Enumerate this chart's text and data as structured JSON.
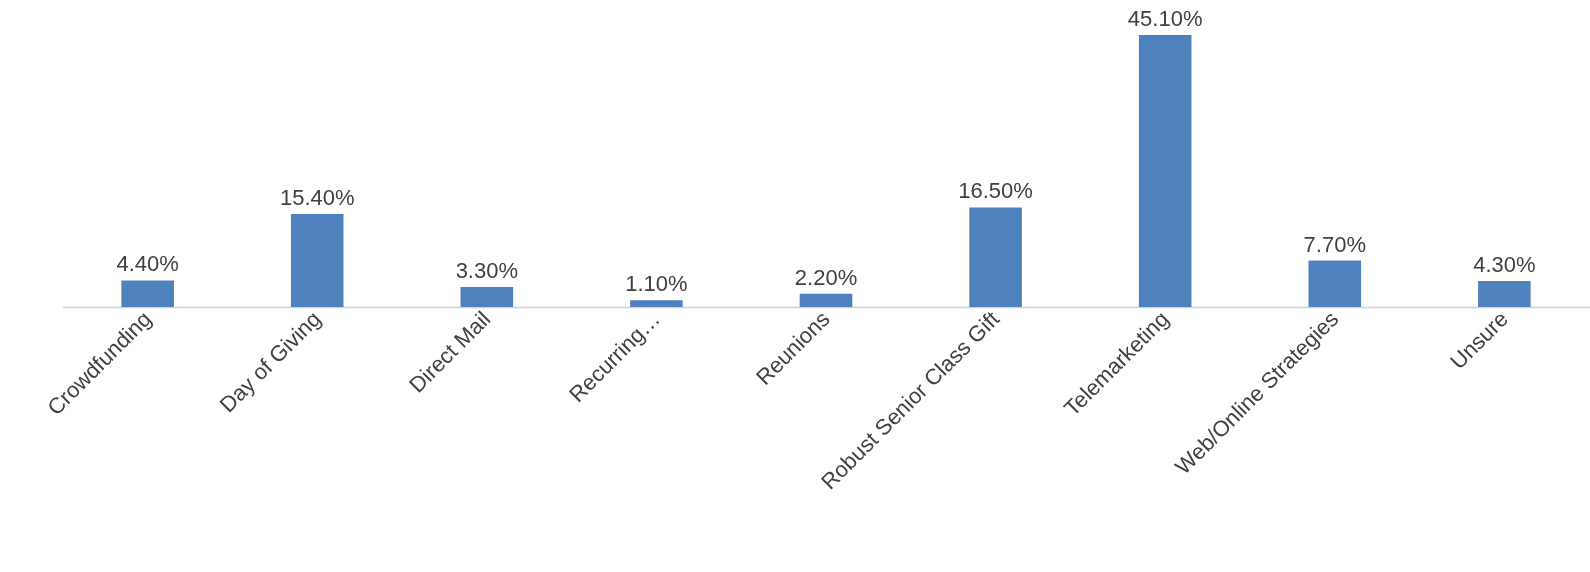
{
  "chart_data": {
    "type": "bar",
    "categories": [
      "Crowdfunding",
      "Day of Giving",
      "Direct Mail",
      "Recurring…",
      "Reunions",
      "Robust Senior Class Gift",
      "Telemarketing",
      "Web/Online Strategies",
      "Unsure"
    ],
    "values": [
      4.4,
      15.4,
      3.3,
      1.1,
      2.2,
      16.5,
      45.1,
      7.7,
      4.3
    ],
    "value_labels": [
      "4.40%",
      "15.40%",
      "3.30%",
      "1.10%",
      "2.20%",
      "16.50%",
      "45.10%",
      "7.70%",
      "4.30%"
    ],
    "color": "#4f81bd"
  }
}
